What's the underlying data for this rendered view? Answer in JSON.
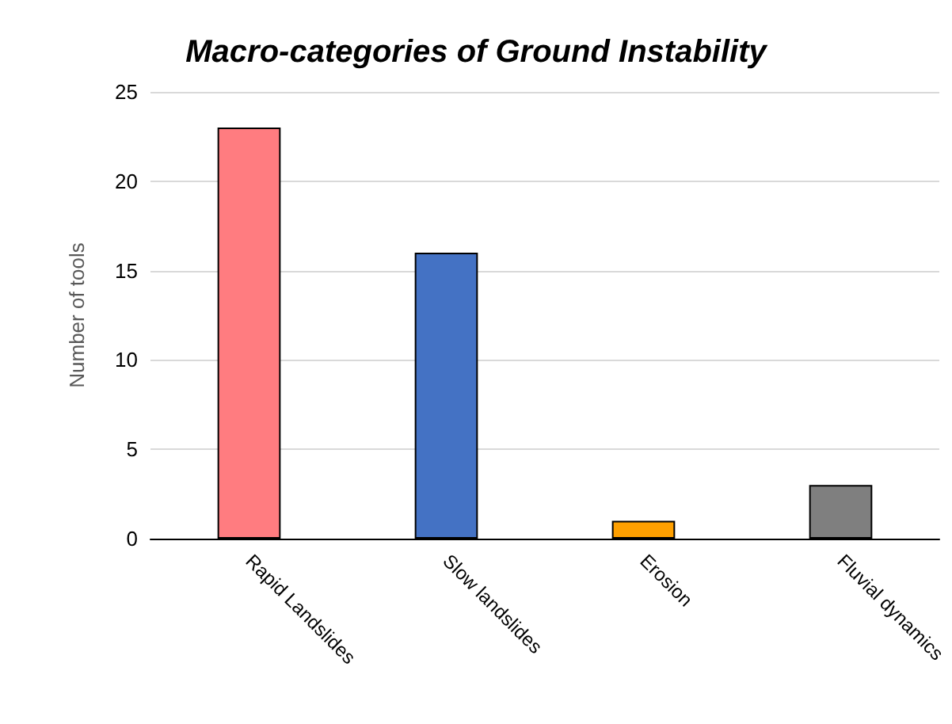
{
  "chart_data": {
    "type": "bar",
    "title": "Macro-categories of Ground Instability",
    "ylabel": "Number of tools",
    "categories": [
      "Rapid Landslides",
      "Slow landslides",
      "Erosion",
      "Fluvial dynamics"
    ],
    "values": [
      23,
      16,
      1,
      3
    ],
    "colors": [
      "#ff7c80",
      "#4472c4",
      "#ffa000",
      "#7f7f7f"
    ],
    "ylim": [
      0,
      25
    ],
    "yticks": [
      0,
      5,
      10,
      15,
      20,
      25
    ],
    "grid": "y"
  }
}
